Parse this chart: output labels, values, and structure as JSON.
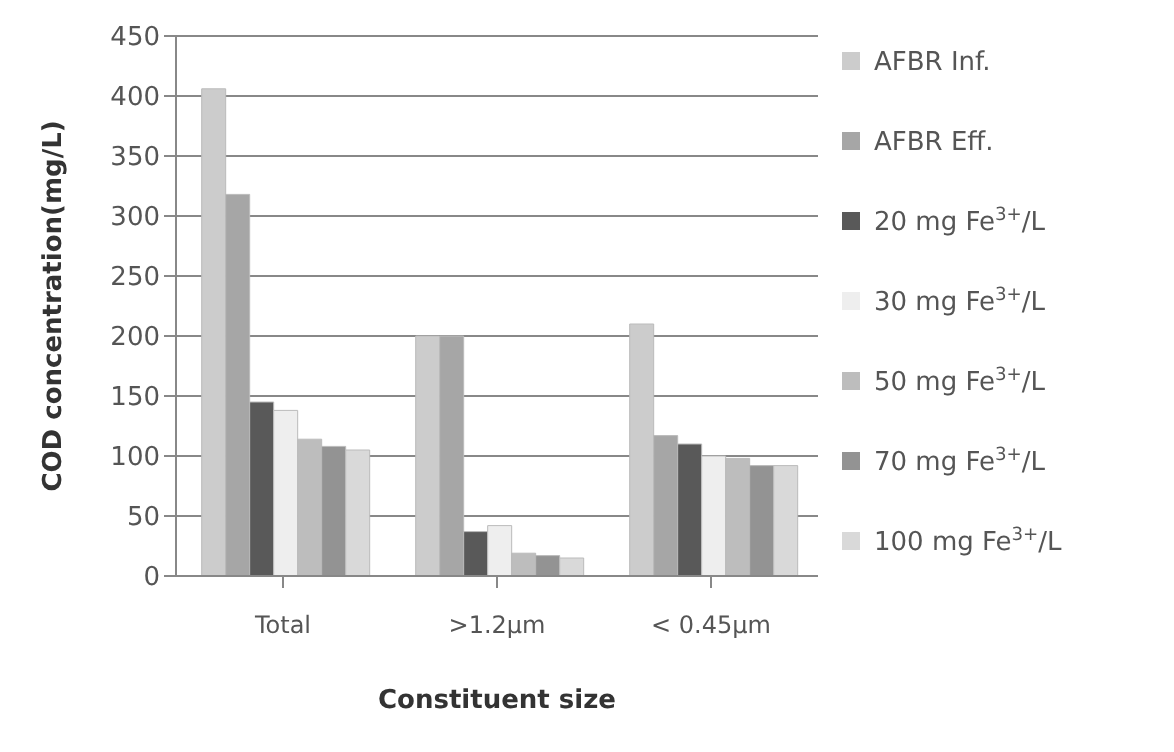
{
  "chart_data": {
    "type": "bar",
    "xlabel": "Constituent size",
    "ylabel": "COD concentration(mg/L)",
    "categories": [
      "Total",
      ">1.2μm",
      "< 0.45μm"
    ],
    "series": [
      {
        "name": "AFBR Inf.",
        "color": "#cccccc",
        "values": [
          406,
          200,
          210
        ]
      },
      {
        "name": "AFBR Eff.",
        "color": "#a6a6a6",
        "values": [
          318,
          200,
          117
        ]
      },
      {
        "name": "20 mg Fe$^{3+}$/L",
        "color": "#595959",
        "values": [
          145,
          37,
          110
        ]
      },
      {
        "name": "30 mg Fe$^{3+}$/L",
        "color": "#eeeeee",
        "values": [
          138,
          42,
          100
        ]
      },
      {
        "name": "50 mg Fe$^{3+}$/L",
        "color": "#bdbdbd",
        "values": [
          114,
          19,
          98
        ]
      },
      {
        "name": "70 mg Fe$^{3+}$/L",
        "color": "#939393",
        "values": [
          108,
          17,
          92
        ]
      },
      {
        "name": "100 mg Fe$^{3+}$/L",
        "color": "#d9d9d9",
        "values": [
          105,
          15,
          92
        ]
      }
    ],
    "ylim": [
      0,
      450
    ],
    "yticks": [
      0,
      50,
      100,
      150,
      200,
      250,
      300,
      350,
      400,
      450
    ],
    "grid": "y",
    "legend": "right"
  }
}
